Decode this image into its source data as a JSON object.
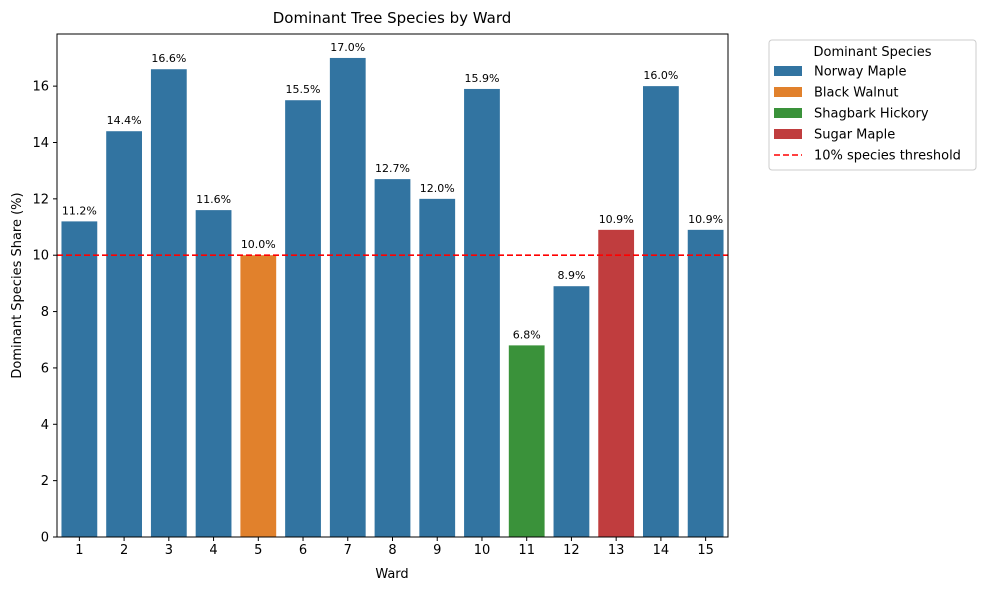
{
  "chart_data": {
    "type": "bar",
    "title": "Dominant Tree Species by Ward",
    "xlabel": "Ward",
    "ylabel": "Dominant Species Share (%)",
    "ylim": [
      0,
      17.85
    ],
    "yticks": [
      0,
      2,
      4,
      6,
      8,
      10,
      12,
      14,
      16
    ],
    "categories": [
      "1",
      "2",
      "3",
      "4",
      "5",
      "6",
      "7",
      "8",
      "9",
      "10",
      "11",
      "12",
      "13",
      "14",
      "15"
    ],
    "values": [
      11.2,
      14.4,
      16.6,
      11.6,
      10.0,
      15.5,
      17.0,
      12.7,
      12.0,
      15.9,
      6.8,
      8.9,
      10.9,
      16.0,
      10.9
    ],
    "data_labels": [
      "11.2%",
      "14.4%",
      "16.6%",
      "11.6%",
      "10.0%",
      "15.5%",
      "17.0%",
      "12.7%",
      "12.0%",
      "15.9%",
      "6.8%",
      "8.9%",
      "10.9%",
      "16.0%",
      "10.9%"
    ],
    "species": [
      "Norway Maple",
      "Norway Maple",
      "Norway Maple",
      "Norway Maple",
      "Black Walnut",
      "Norway Maple",
      "Norway Maple",
      "Norway Maple",
      "Norway Maple",
      "Norway Maple",
      "Shagbark Hickory",
      "Norway Maple",
      "Sugar Maple",
      "Norway Maple",
      "Norway Maple"
    ],
    "species_colors": {
      "Norway Maple": "#3274a1",
      "Black Walnut": "#e1812c",
      "Shagbark Hickory": "#3a923a",
      "Sugar Maple": "#c03d3e"
    },
    "threshold": {
      "value": 10,
      "label": "10% species threshold",
      "color": "#ff0000",
      "style": "dashed"
    },
    "legend": {
      "title": "Dominant Species",
      "placement": "outside-top-right",
      "entries": [
        "Norway Maple",
        "Black Walnut",
        "Shagbark Hickory",
        "Sugar Maple"
      ]
    },
    "grid": false
  }
}
